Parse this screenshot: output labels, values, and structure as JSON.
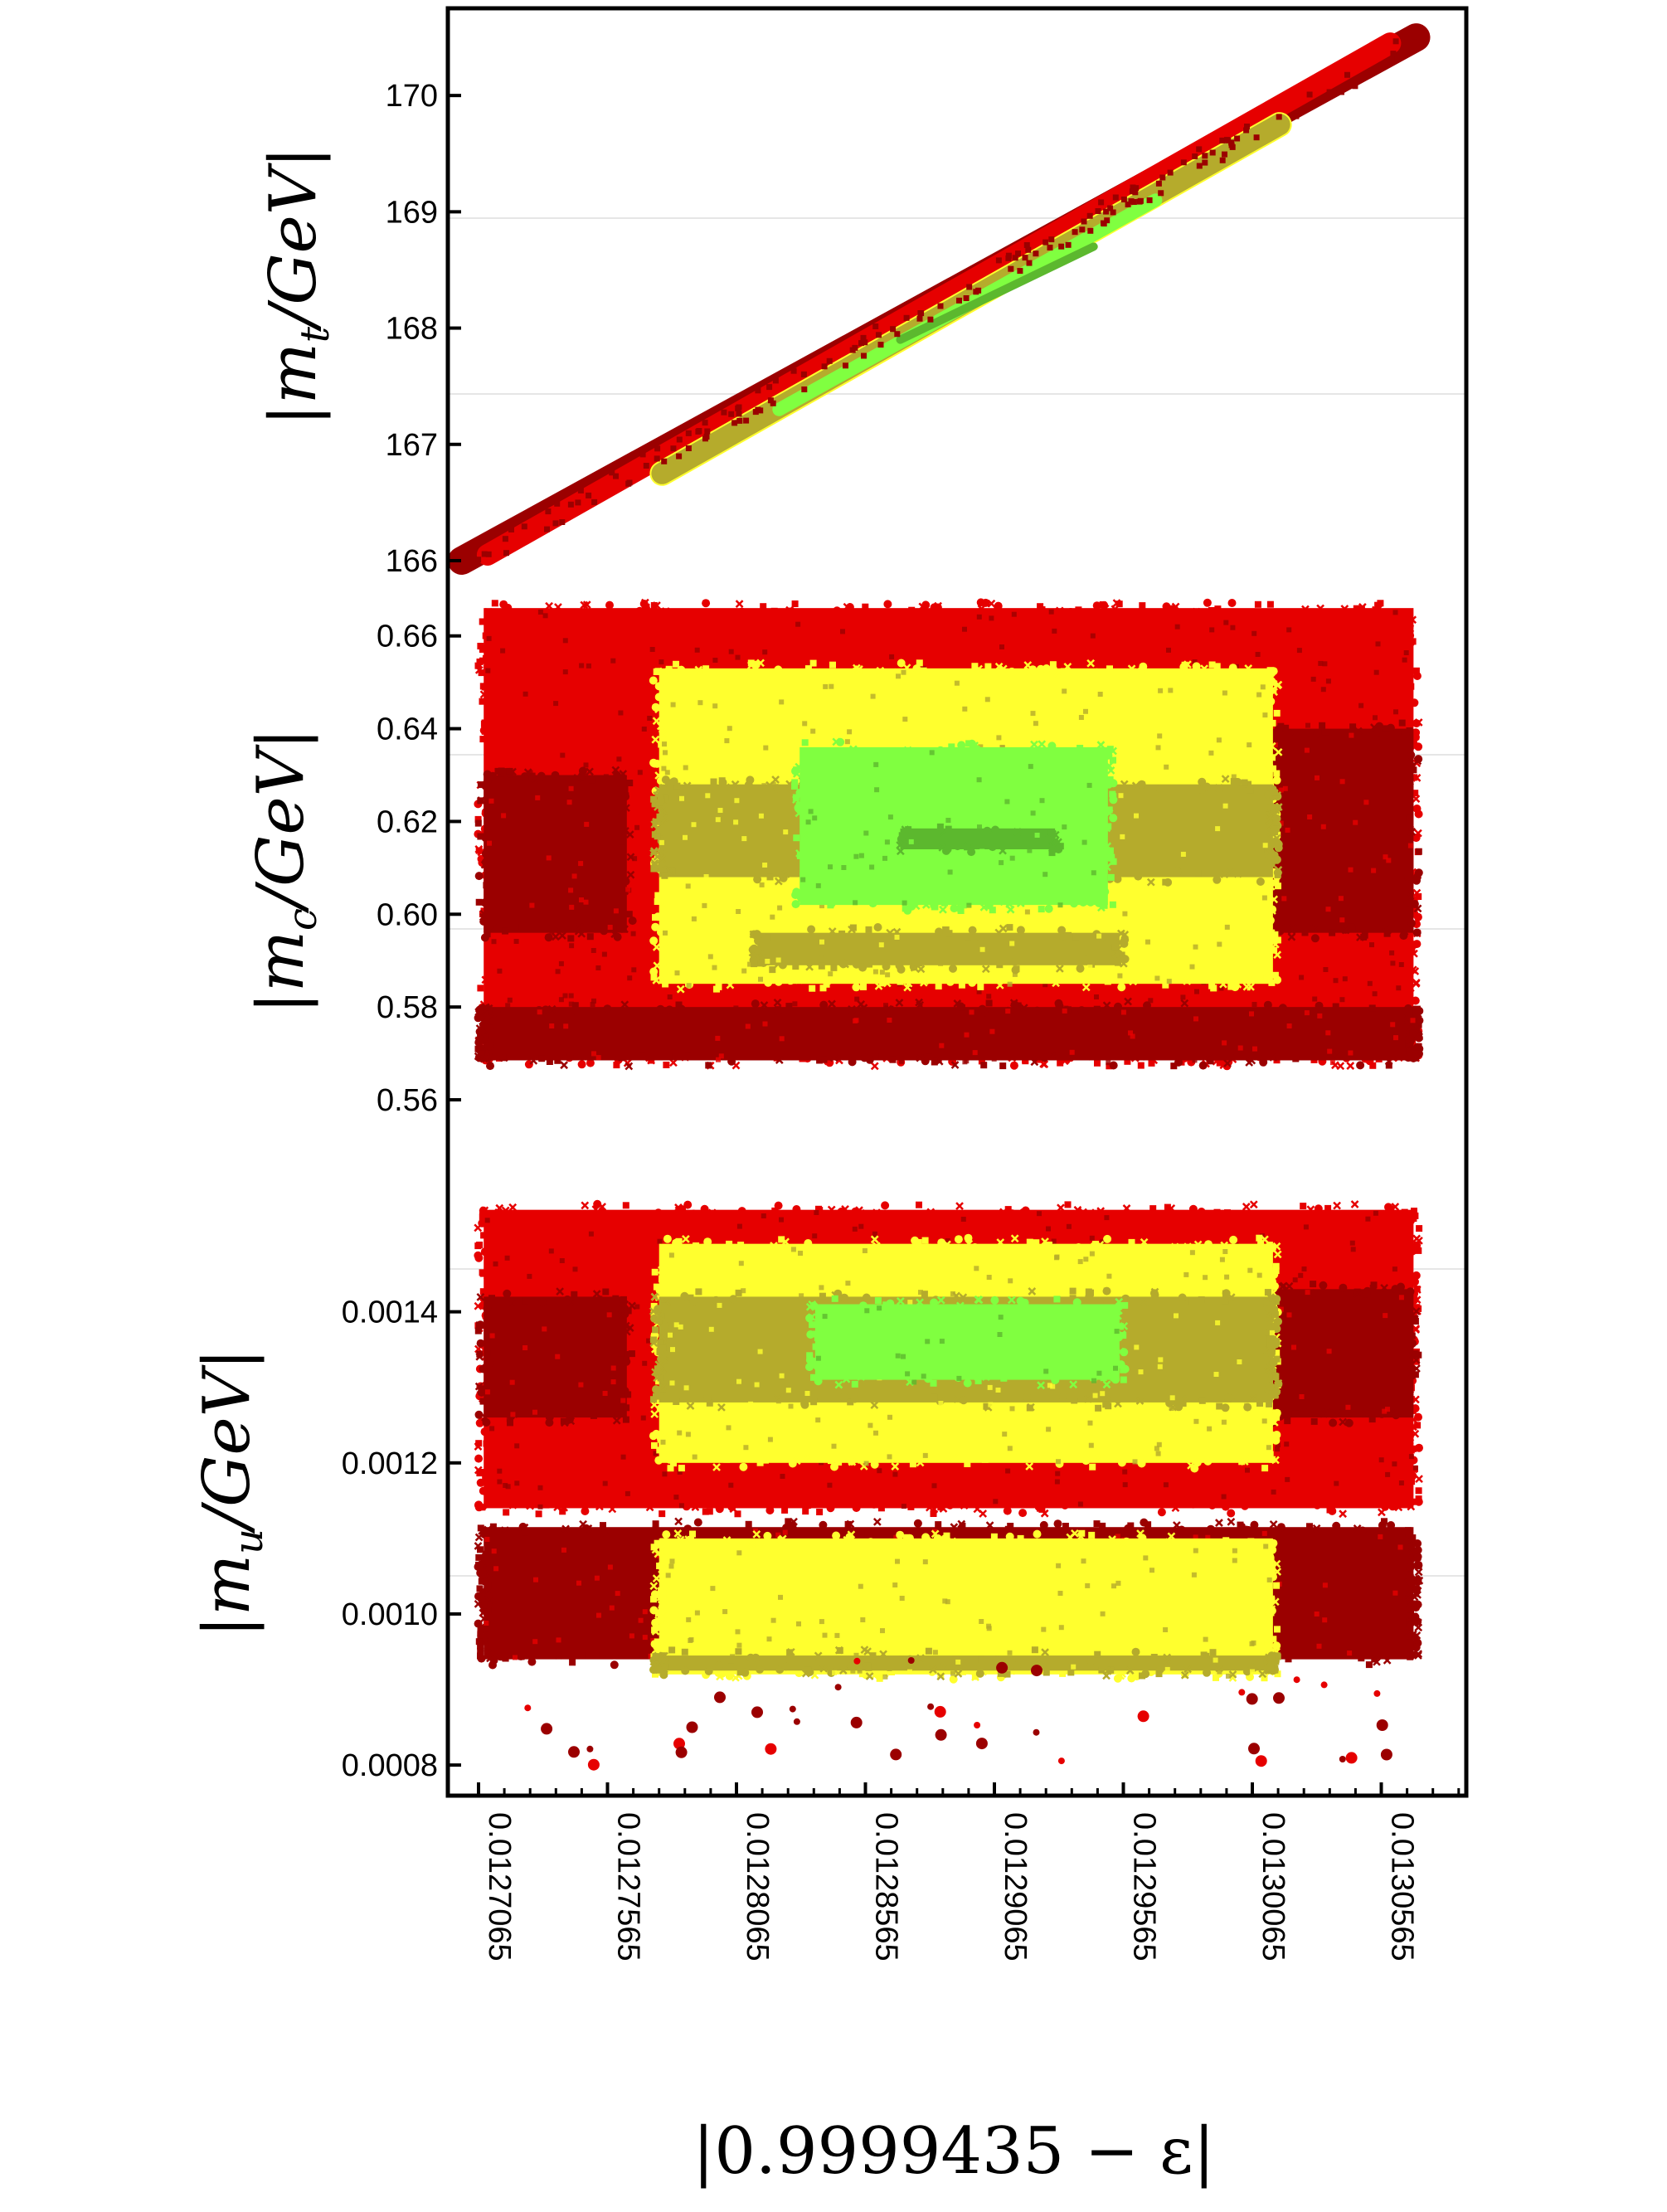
{
  "chart_data": {
    "type": "scatter",
    "layout": "three vertically stacked panels sharing one x axis",
    "xlabel": "|0.9999435 − ε|",
    "xlim": [
      0.0127,
      0.01308
    ],
    "xticks": [
      0.0127065,
      0.0127565,
      0.0128065,
      0.0128565,
      0.0129065,
      0.0129565,
      0.0130065,
      0.0130565
    ],
    "xtick_labels": [
      "0.0127065",
      "0.0127565",
      "0.0128065",
      "0.0128565",
      "0.0129065",
      "0.0129565",
      "0.0130065",
      "0.0130565"
    ],
    "xtick_label_orientation": "vertical",
    "grid": "light horizontal lines",
    "legend": "none",
    "marker_styles": [
      "filled circle",
      "filled square",
      "x cross"
    ],
    "colors": {
      "dark_red": "#9b0000",
      "red": "#e60000",
      "yellow": "#ffff2e",
      "olive": "#b5ab2c",
      "light_green": "#80ff40",
      "green": "#5cb82e"
    },
    "panels": [
      {
        "id": "top",
        "ylabel": "|m_t/GeV|",
        "ylabel_parts": {
          "base": "|m",
          "sub": "t",
          "rest": "/GeV|"
        },
        "ylim": [
          165.9,
          170.75
        ],
        "yticks": [
          166,
          167,
          168,
          169,
          170
        ],
        "ytick_labels": [
          "166",
          "167",
          "168",
          "169",
          "170"
        ],
        "shape": "diagonal band rising with x",
        "regions": [
          {
            "color": "dark_red",
            "x_range": [
              0.0127,
              0.01307
            ],
            "y_range": [
              166.0,
              170.5
            ]
          },
          {
            "color": "red",
            "x_range": [
              0.01271,
              0.01306
            ],
            "y_range": [
              166.05,
              170.45
            ]
          },
          {
            "color": "yellow",
            "x_range": [
              0.0127777,
              0.013017
            ],
            "y_range": [
              166.75,
              169.75
            ]
          },
          {
            "color": "olive",
            "x_range": [
              0.0127777,
              0.013017
            ],
            "y_range": [
              166.75,
              169.75
            ]
          },
          {
            "color": "light_green",
            "x_range": [
              0.012823,
              0.012969
            ],
            "y_range": [
              167.3,
              169.1
            ]
          },
          {
            "color": "green",
            "x_range": [
              0.01287,
              0.012945
            ],
            "y_range": [
              167.9,
              168.7
            ]
          }
        ]
      },
      {
        "id": "middle",
        "ylabel": "|m_c/GeV|",
        "ylabel_parts": {
          "base": "|m",
          "sub": "c",
          "rest": "/GeV|"
        },
        "ylim": [
          0.5575,
          0.6612
        ],
        "yticks": [
          0.56,
          0.58,
          0.6,
          0.62,
          0.64,
          0.66
        ],
        "ytick_labels": [
          "0.56",
          "0.58",
          "0.60",
          "0.62",
          "0.64",
          "0.66"
        ],
        "regions": [
          {
            "color": "red",
            "x_range": [
              0.0127085,
              0.013069
            ],
            "y_range": [
              0.5685,
              0.666
            ]
          },
          {
            "color": "dark_red",
            "x_range": [
              0.0127085,
              0.013069
            ],
            "y_range": [
              0.5685,
              0.58
            ]
          },
          {
            "color": "dark_red",
            "x_range": [
              0.0127085,
              0.012764
            ],
            "y_range": [
              0.596,
              0.63
            ]
          },
          {
            "color": "dark_red",
            "x_range": [
              0.013005,
              0.013069
            ],
            "y_range": [
              0.596,
              0.64
            ]
          },
          {
            "color": "yellow",
            "x_range": [
              0.0127765,
              0.0130145
            ],
            "y_range": [
              0.585,
              0.653
            ]
          },
          {
            "color": "olive",
            "x_range": [
              0.0127765,
              0.0130145
            ],
            "y_range": [
              0.608,
              0.628
            ]
          },
          {
            "color": "olive",
            "x_range": [
              0.012815,
              0.012955
            ],
            "y_range": [
              0.589,
              0.596
            ]
          },
          {
            "color": "light_green",
            "x_range": [
              0.012831,
              0.0129505
            ],
            "y_range": [
              0.602,
              0.636
            ]
          },
          {
            "color": "green",
            "x_range": [
              0.01287,
              0.01293
            ],
            "y_range": [
              0.614,
              0.6185
            ]
          }
        ]
      },
      {
        "id": "bottom",
        "ylabel": "|m_u/GeV|",
        "ylabel_parts": {
          "base": "|m",
          "sub": "u",
          "rest": "/GeV|"
        },
        "ylim": [
          0.000765,
          0.00155
        ],
        "yticks": [
          0.0008,
          0.001,
          0.0012,
          0.0014
        ],
        "ytick_labels": [
          "0.0008",
          "0.0010",
          "0.0012",
          "0.0014"
        ],
        "regions": [
          {
            "color": "red",
            "x_range": [
              0.0127085,
              0.013069
            ],
            "y_range": [
              0.00114,
              0.001535
            ]
          },
          {
            "color": "dark_red",
            "x_range": [
              0.0127085,
              0.012764
            ],
            "y_range": [
              0.00126,
              0.00142
            ]
          },
          {
            "color": "dark_red",
            "x_range": [
              0.013005,
              0.013069
            ],
            "y_range": [
              0.00126,
              0.00143
            ]
          },
          {
            "color": "dark_red",
            "x_range": [
              0.0127085,
              0.013069
            ],
            "y_range": [
              0.00094,
              0.001115
            ]
          },
          {
            "color": "yellow",
            "x_range": [
              0.0127765,
              0.0130145
            ],
            "y_range": [
              0.0012,
              0.00149
            ]
          },
          {
            "color": "olive",
            "x_range": [
              0.0127765,
              0.0130145
            ],
            "y_range": [
              0.00128,
              0.00142
            ]
          },
          {
            "color": "light_green",
            "x_range": [
              0.012837,
              0.012955
            ],
            "y_range": [
              0.00131,
              0.00141
            ]
          },
          {
            "color": "yellow",
            "x_range": [
              0.0127765,
              0.0130145
            ],
            "y_range": [
              0.00092,
              0.0011
            ]
          },
          {
            "color": "olive",
            "x_range": [
              0.0127765,
              0.0130145
            ],
            "y_range": [
              0.000925,
              0.000945
            ]
          }
        ]
      }
    ]
  }
}
